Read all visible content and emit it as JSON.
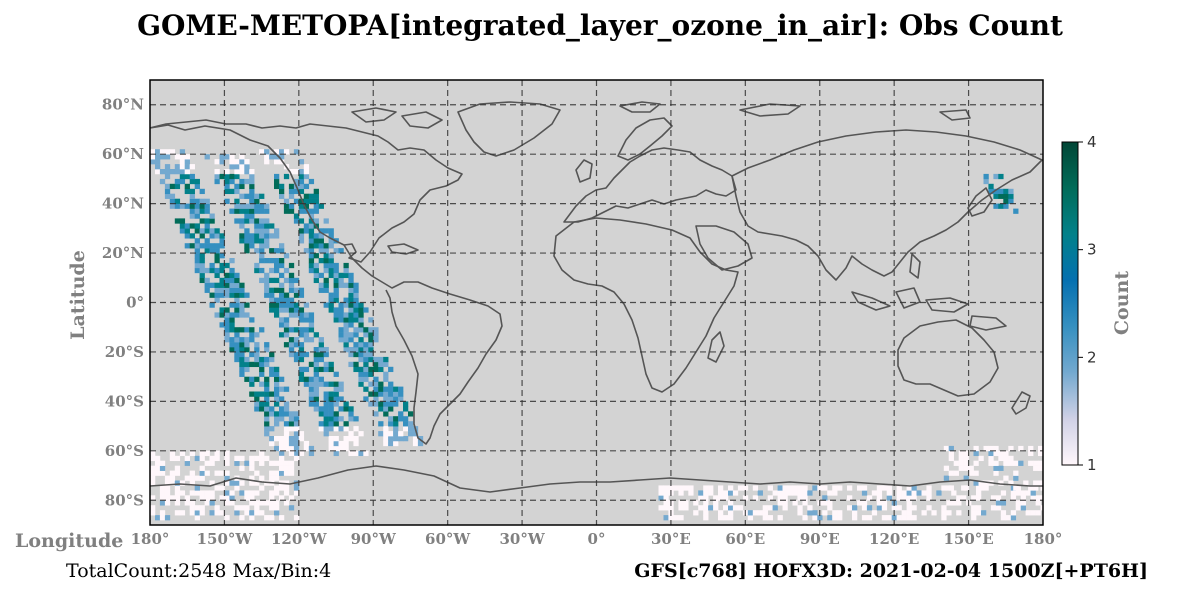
{
  "chart_data": {
    "type": "heatmap",
    "title": "GOME-METOPA[integrated_layer_ozone_in_air]: Obs Count",
    "xlabel": "Longitude",
    "ylabel": "Latitude",
    "xlim": [
      -180,
      180
    ],
    "ylim": [
      -90,
      90
    ],
    "x_ticks": [
      {
        "value": -180,
        "label": "180°"
      },
      {
        "value": -150,
        "label": "150°W"
      },
      {
        "value": -120,
        "label": "120°W"
      },
      {
        "value": -90,
        "label": "90°W"
      },
      {
        "value": -60,
        "label": "60°W"
      },
      {
        "value": -30,
        "label": "30°W"
      },
      {
        "value": 0,
        "label": "0°"
      },
      {
        "value": 30,
        "label": "30°E"
      },
      {
        "value": 60,
        "label": "60°E"
      },
      {
        "value": 90,
        "label": "90°E"
      },
      {
        "value": 120,
        "label": "120°E"
      },
      {
        "value": 150,
        "label": "150°E"
      },
      {
        "value": 180,
        "label": "180°"
      }
    ],
    "y_ticks": [
      {
        "value": 80,
        "label": "80°N"
      },
      {
        "value": 60,
        "label": "60°N"
      },
      {
        "value": 40,
        "label": "40°N"
      },
      {
        "value": 20,
        "label": "20°N"
      },
      {
        "value": 0,
        "label": "0°"
      },
      {
        "value": -20,
        "label": "20°S"
      },
      {
        "value": -40,
        "label": "40°S"
      },
      {
        "value": -60,
        "label": "60°S"
      },
      {
        "value": -80,
        "label": "80°S"
      }
    ],
    "grid": true,
    "colorbar": {
      "label": "Count",
      "min": 1,
      "max": 4,
      "ticks": [
        1,
        2,
        3,
        4
      ],
      "colors": [
        "#fff7fb",
        "#d0d1e6",
        "#74a9cf",
        "#3690c0",
        "#0570b0",
        "#02818a",
        "#016c59",
        "#014636"
      ]
    },
    "swaths": [
      {
        "lon_at_equator": -148,
        "lon_drift_per_deg_lat": 0.42,
        "half_width": 7,
        "lat_min": -62,
        "lat_max": 62
      },
      {
        "lon_at_equator": -125,
        "lon_drift_per_deg_lat": 0.42,
        "half_width": 7,
        "lat_min": -62,
        "lat_max": 60
      },
      {
        "lon_at_equator": -102,
        "lon_drift_per_deg_lat": 0.42,
        "half_width": 7,
        "lat_min": -58,
        "lat_max": 62
      },
      {
        "lon_at_equator": 176,
        "lon_drift_per_deg_lat": 0.3,
        "half_width": 4,
        "lat_min": 36,
        "lat_max": 52
      },
      {
        "lon_at_equator": 184,
        "lon_drift_per_deg_lat": 0.6,
        "half_width": 8,
        "lat_min": -62,
        "lat_max": -36
      }
    ],
    "polar_bands": [
      {
        "lon_min": -180,
        "lon_max": -120,
        "lat_min": -88,
        "lat_max": -60
      },
      {
        "lon_min": 25,
        "lon_max": 180,
        "lat_min": -88,
        "lat_max": -74
      },
      {
        "lon_min": 140,
        "lon_max": 180,
        "lat_min": -76,
        "lat_max": -58
      }
    ],
    "total_count": 2548,
    "max_per_bin": 4
  },
  "footer": {
    "left": "TotalCount:2548 Max/Bin:4",
    "right": "GFS[c768] HOFX3D: 2021-02-04 1500Z[+PT6H]"
  }
}
